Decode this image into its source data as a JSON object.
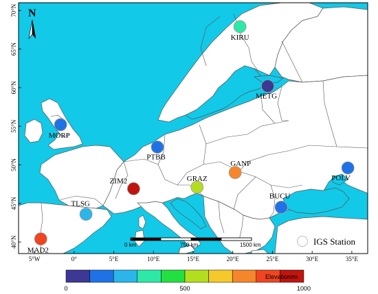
{
  "map": {
    "north_label": "N",
    "lat_ticks": [
      {
        "label": "40°N",
        "lat": 40
      },
      {
        "label": "45°N",
        "lat": 45
      },
      {
        "label": "50°N",
        "lat": 50
      },
      {
        "label": "55°N",
        "lat": 55
      },
      {
        "label": "60°N",
        "lat": 60
      },
      {
        "label": "65°N",
        "lat": 65
      },
      {
        "label": "70°N",
        "lat": 70
      }
    ],
    "lon_ticks": [
      {
        "label": "5°W",
        "lon": -5
      },
      {
        "label": "0°",
        "lon": 0
      },
      {
        "label": "5°E",
        "lon": 5
      },
      {
        "label": "10°E",
        "lon": 10
      },
      {
        "label": "15°E",
        "lon": 15
      },
      {
        "label": "20°E",
        "lon": 20
      },
      {
        "label": "25°E",
        "lon": 25
      },
      {
        "label": "30°E",
        "lon": 30
      },
      {
        "label": "35°E",
        "lon": 35
      }
    ],
    "extent": {
      "lon_min": -7,
      "lon_max": 37,
      "lat_min": 38.5,
      "lat_max": 71
    },
    "colors": {
      "sea": "#12c9e8",
      "land": "#ffffff",
      "border": "#555555"
    }
  },
  "stations": [
    {
      "name": "KIRU",
      "lon": 20.9,
      "lat": 67.9,
      "color": "#2ee8a8"
    },
    {
      "name": "METG",
      "lon": 24.4,
      "lat": 60.2,
      "color": "#3c3893"
    },
    {
      "name": "MORP",
      "lon": -1.7,
      "lat": 55.2,
      "color": "#1f72e6"
    },
    {
      "name": "PTBB",
      "lon": 10.5,
      "lat": 52.3,
      "color": "#1f72e6"
    },
    {
      "name": "GANP",
      "lon": 20.3,
      "lat": 49.0,
      "color": "#f5862b"
    },
    {
      "name": "POLV",
      "lon": 34.5,
      "lat": 49.6,
      "color": "#1f72e6"
    },
    {
      "name": "ZIM2",
      "lon": 7.5,
      "lat": 46.9,
      "color": "#c0150f"
    },
    {
      "name": "GRAZ",
      "lon": 15.5,
      "lat": 47.1,
      "color": "#b3de1f"
    },
    {
      "name": "TLSG",
      "lon": 1.5,
      "lat": 43.6,
      "color": "#2bb5e8"
    },
    {
      "name": "BUCU",
      "lon": 26.1,
      "lat": 44.5,
      "color": "#1f72e6"
    },
    {
      "name": "MAD2",
      "lon": -4.2,
      "lat": 40.4,
      "color": "#f04520"
    }
  ],
  "scale_bar": {
    "labels": [
      "0 km",
      "750 km",
      "1500 km"
    ]
  },
  "legend": {
    "label": "IGS Station"
  },
  "colorbar": {
    "title": "Elevation/m",
    "min": 0,
    "max": 1000,
    "tick_labels": [
      "0",
      "500",
      "1000"
    ],
    "tick_values": [
      0,
      500,
      1000
    ],
    "colors": [
      "#3c3893",
      "#1f72e6",
      "#2bb5e8",
      "#2ee8a8",
      "#22e040",
      "#b3de1f",
      "#f5c82b",
      "#f5862b",
      "#f04520",
      "#c0150f"
    ]
  }
}
